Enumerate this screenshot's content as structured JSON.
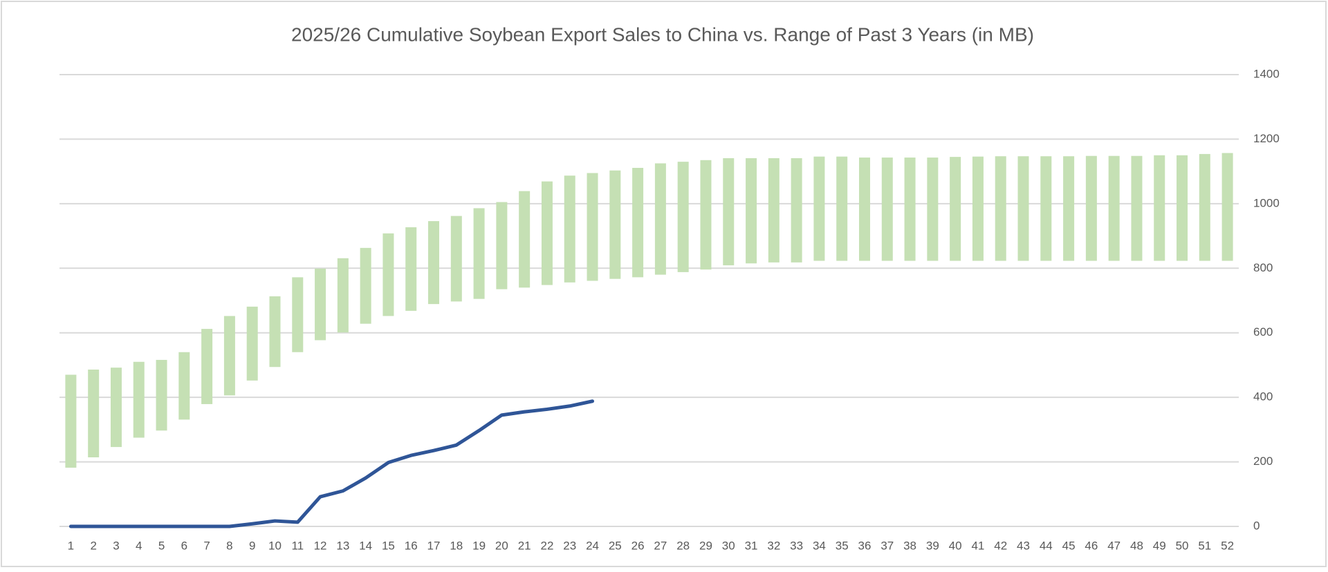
{
  "chart_data": {
    "type": "combo",
    "title": "2025/26 Cumulative Soybean Export Sales to China vs. Range of Past 3 Years (in MB)",
    "categories": [
      1,
      2,
      3,
      4,
      5,
      6,
      7,
      8,
      9,
      10,
      11,
      12,
      13,
      14,
      15,
      16,
      17,
      18,
      19,
      20,
      21,
      22,
      23,
      24,
      25,
      26,
      27,
      28,
      29,
      30,
      31,
      32,
      33,
      34,
      35,
      36,
      37,
      38,
      39,
      40,
      41,
      42,
      43,
      44,
      45,
      46,
      47,
      48,
      49,
      50,
      51,
      52
    ],
    "series": [
      {
        "type": "range",
        "color": "#c5e0b4",
        "low": [
          182,
          214,
          246,
          275,
          297,
          331,
          379,
          406,
          452,
          494,
          540,
          577,
          601,
          628,
          652,
          668,
          689,
          697,
          705,
          735,
          740,
          748,
          756,
          761,
          767,
          772,
          780,
          788,
          796,
          809,
          815,
          818,
          818,
          823,
          823,
          823,
          823,
          823,
          823,
          823,
          823,
          823,
          823,
          823,
          823,
          823,
          823,
          823,
          823,
          823,
          823,
          823
        ],
        "high": [
          470,
          486,
          492,
          510,
          516,
          540,
          612,
          652,
          681,
          713,
          772,
          799,
          831,
          863,
          908,
          927,
          946,
          962,
          986,
          1005,
          1039,
          1069,
          1087,
          1095,
          1103,
          1111,
          1125,
          1130,
          1135,
          1141,
          1141,
          1141,
          1141,
          1146,
          1146,
          1143,
          1143,
          1143,
          1143,
          1145,
          1146,
          1147,
          1147,
          1147,
          1147,
          1148,
          1148,
          1148,
          1150,
          1150,
          1154,
          1157
        ]
      },
      {
        "type": "line",
        "color": "#2f5597",
        "values": [
          0,
          0,
          0,
          0,
          0,
          0,
          0,
          0,
          8,
          17,
          13,
          92,
          110,
          150,
          198,
          220,
          235,
          252,
          297,
          345,
          355,
          363,
          373,
          388,
          null,
          null,
          null,
          null,
          null,
          null,
          null,
          null,
          null,
          null,
          null,
          null,
          null,
          null,
          null,
          null,
          null,
          null,
          null,
          null,
          null,
          null,
          null,
          null,
          null,
          null,
          null,
          null
        ]
      }
    ],
    "ylim": [
      0,
      1400
    ],
    "yticks": [
      0,
      200,
      400,
      600,
      800,
      1000,
      1200,
      1400
    ],
    "grid": true,
    "grid_color": "#d9d9d9"
  }
}
